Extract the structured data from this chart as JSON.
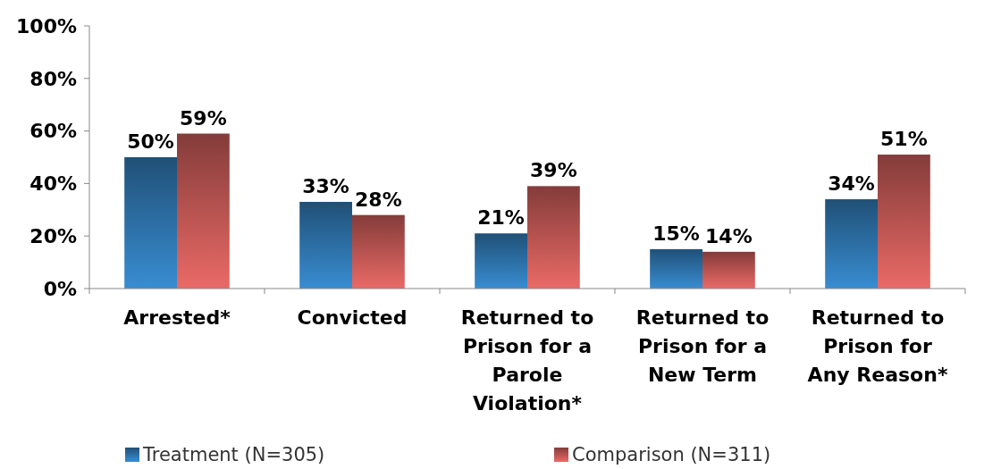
{
  "chart_data": {
    "type": "bar",
    "categories": [
      "Arrested*",
      "Convicted",
      "Returned to Prison for a Parole Violation*",
      "Returned to Prison for a New Term",
      "Returned to Prison for Any Reason*"
    ],
    "series": [
      {
        "name": "Treatment (N=305)",
        "color": "#2a6a9e",
        "values": [
          50,
          33,
          21,
          15,
          34
        ],
        "value_labels": [
          "50%",
          "33%",
          "21%",
          "15%",
          "34%"
        ]
      },
      {
        "name": "Comparison (N=311)",
        "color": "#b0504d",
        "values": [
          59,
          28,
          39,
          14,
          51
        ],
        "value_labels": [
          "59%",
          "28%",
          "39%",
          "14%",
          "51%"
        ]
      }
    ],
    "ylim": [
      0,
      100
    ],
    "yticks": [
      {
        "value": 0,
        "label": "0%"
      },
      {
        "value": 20,
        "label": "20%"
      },
      {
        "value": 40,
        "label": "40%"
      },
      {
        "value": 60,
        "label": "60%"
      },
      {
        "value": 80,
        "label": "80%"
      },
      {
        "value": 100,
        "label": "100%"
      }
    ],
    "grid": false,
    "legend": "bottom"
  }
}
